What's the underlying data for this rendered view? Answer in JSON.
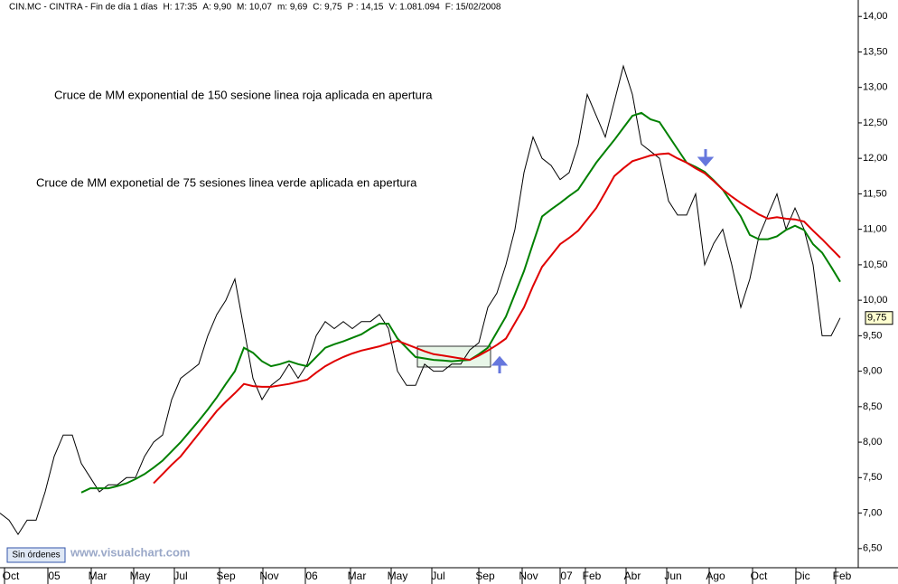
{
  "chart_data": {
    "type": "line",
    "header": [
      "CIN.MC - CINTRA - Fin de día 1 días",
      "H: 17:35",
      "A: 9,90",
      "M: 10,07",
      "m: 9,69",
      "C: 9,75",
      "P : 14,15",
      "V: 1.081.094",
      "F: 15/02/2008"
    ],
    "annotations": [
      {
        "text": "Cruce de MM exponential de 150 sesione linea roja aplicada en apertura",
        "color": "#e00000"
      },
      {
        "text": "Cruce de MM exponetial de 75 sesiones linea verde aplicada en apertura",
        "color": "#008000"
      }
    ],
    "button": "Sin órdenes",
    "watermark": "www.visualchart.com",
    "last_value": 9.75,
    "last_value_label": "9,75",
    "x": [
      0,
      10,
      20,
      30,
      40,
      50,
      60,
      70,
      80,
      90,
      100,
      110,
      120,
      130,
      140,
      150,
      160,
      170,
      180,
      190,
      200,
      210,
      220,
      230,
      240,
      250,
      260,
      270,
      280,
      290,
      300,
      310,
      320,
      330,
      340,
      350,
      360,
      370,
      380,
      390,
      400,
      410,
      420,
      430,
      440,
      450,
      460,
      470,
      480,
      490,
      500,
      510,
      520,
      530,
      540,
      550,
      560,
      570,
      580,
      590,
      600,
      610,
      620,
      630,
      640,
      650,
      660,
      670,
      680,
      690,
      700,
      710,
      720,
      730,
      740,
      750,
      760,
      770,
      780,
      790,
      800,
      810,
      820,
      830,
      840,
      850,
      860,
      870,
      880,
      890,
      900,
      910,
      920,
      930
    ],
    "series": [
      {
        "color": "#000000",
        "values": [
          7.0,
          6.9,
          6.7,
          6.9,
          6.9,
          7.3,
          7.8,
          8.1,
          8.1,
          7.7,
          7.5,
          7.3,
          7.4,
          7.4,
          7.5,
          7.5,
          7.8,
          8.0,
          8.1,
          8.6,
          8.9,
          9.0,
          9.1,
          9.5,
          9.8,
          10.0,
          10.3,
          9.6,
          8.9,
          8.6,
          8.8,
          8.9,
          9.1,
          8.9,
          9.1,
          9.5,
          9.7,
          9.6,
          9.7,
          9.6,
          9.7,
          9.7,
          9.8,
          9.6,
          9.0,
          8.8,
          8.8,
          9.1,
          9.0,
          9.0,
          9.1,
          9.1,
          9.3,
          9.4,
          9.9,
          10.1,
          10.5,
          11.0,
          11.8,
          12.3,
          12.0,
          11.9,
          11.7,
          11.8,
          12.2,
          12.9,
          12.6,
          12.3,
          12.8,
          13.3,
          12.9,
          12.2,
          12.1,
          12.0,
          11.4,
          11.2,
          11.2,
          11.5,
          10.5,
          10.8,
          11.0,
          10.5,
          9.9,
          10.3,
          10.9,
          11.2,
          11.5,
          11.0,
          11.3,
          11.0,
          10.5,
          9.5,
          9.5,
          9.75
        ]
      },
      {
        "color": "#008000",
        "values": [
          null,
          null,
          null,
          null,
          null,
          null,
          null,
          null,
          null,
          7.29,
          7.35,
          7.35,
          7.35,
          7.38,
          7.42,
          7.48,
          7.55,
          7.64,
          7.74,
          7.87,
          8.0,
          8.15,
          8.3,
          8.46,
          8.63,
          8.82,
          9.0,
          9.33,
          9.26,
          9.14,
          9.07,
          9.1,
          9.14,
          9.1,
          9.07,
          9.2,
          9.33,
          9.38,
          9.42,
          9.47,
          9.52,
          9.6,
          9.67,
          9.67,
          9.46,
          9.33,
          9.2,
          9.18,
          9.16,
          9.15,
          9.14,
          9.15,
          9.16,
          9.24,
          9.33,
          9.55,
          9.77,
          10.09,
          10.41,
          10.8,
          11.18,
          11.28,
          11.37,
          11.47,
          11.56,
          11.75,
          11.94,
          12.1,
          12.26,
          12.43,
          12.6,
          12.64,
          12.55,
          12.51,
          12.32,
          12.13,
          11.94,
          11.88,
          11.81,
          11.69,
          11.56,
          11.37,
          11.18,
          10.92,
          10.86,
          10.86,
          10.9,
          10.99,
          11.05,
          10.99,
          10.79,
          10.67,
          10.47,
          10.26
        ]
      },
      {
        "color": "#e00000",
        "values": [
          null,
          null,
          null,
          null,
          null,
          null,
          null,
          null,
          null,
          null,
          null,
          null,
          null,
          null,
          null,
          null,
          null,
          7.42,
          7.55,
          7.68,
          7.8,
          7.96,
          8.12,
          8.28,
          8.44,
          8.57,
          8.69,
          8.82,
          8.79,
          8.78,
          8.78,
          8.8,
          8.82,
          8.85,
          8.88,
          8.98,
          9.07,
          9.14,
          9.2,
          9.25,
          9.29,
          9.32,
          9.35,
          9.39,
          9.43,
          9.38,
          9.33,
          9.28,
          9.24,
          9.22,
          9.2,
          9.18,
          9.16,
          9.22,
          9.29,
          9.37,
          9.46,
          9.68,
          9.9,
          10.2,
          10.47,
          10.63,
          10.79,
          10.88,
          10.98,
          11.14,
          11.3,
          11.52,
          11.75,
          11.86,
          11.96,
          12.0,
          12.04,
          12.06,
          12.07,
          12.0,
          11.94,
          11.86,
          11.79,
          11.68,
          11.56,
          11.46,
          11.37,
          11.29,
          11.21,
          11.15,
          11.17,
          11.15,
          11.14,
          11.11,
          10.98,
          10.86,
          10.73,
          10.6
        ]
      }
    ],
    "xlim": [
      0,
      950
    ],
    "xticks": [
      {
        "value": 12,
        "label": "Oct"
      },
      {
        "value": 60,
        "label": "05"
      },
      {
        "value": 108,
        "label": "Mar"
      },
      {
        "value": 155,
        "label": "May"
      },
      {
        "value": 200,
        "label": "Jul"
      },
      {
        "value": 250,
        "label": "Sep"
      },
      {
        "value": 298,
        "label": "Nov"
      },
      {
        "value": 345,
        "label": "06"
      },
      {
        "value": 395,
        "label": "Mar"
      },
      {
        "value": 440,
        "label": "May"
      },
      {
        "value": 485,
        "label": "Jul"
      },
      {
        "value": 537,
        "label": "Sep"
      },
      {
        "value": 585,
        "label": "Nov"
      },
      {
        "value": 627,
        "label": "07"
      },
      {
        "value": 655,
        "label": "Feb"
      },
      {
        "value": 700,
        "label": "Abr"
      },
      {
        "value": 745,
        "label": "Jun"
      },
      {
        "value": 792,
        "label": "Ago"
      },
      {
        "value": 840,
        "label": "Oct"
      },
      {
        "value": 888,
        "label": "Dic"
      },
      {
        "value": 932,
        "label": "Feb"
      }
    ],
    "ylim": [
      6.23,
      14.13
    ],
    "yticks": [
      {
        "value": 6.5,
        "label": "6,50"
      },
      {
        "value": 7,
        "label": "7,00"
      },
      {
        "value": 7.5,
        "label": "7,50"
      },
      {
        "value": 8,
        "label": "8,00"
      },
      {
        "value": 8.5,
        "label": "8,50"
      },
      {
        "value": 9,
        "label": "9,00"
      },
      {
        "value": 9.5,
        "label": "9,50"
      },
      {
        "value": 10,
        "label": "10,00"
      },
      {
        "value": 10.5,
        "label": "10,50"
      },
      {
        "value": 11,
        "label": "11,00"
      },
      {
        "value": 11.5,
        "label": "11,50"
      },
      {
        "value": 12,
        "label": "12,00"
      },
      {
        "value": 12.5,
        "label": "12,50"
      },
      {
        "value": 13,
        "label": "13,00"
      },
      {
        "value": 13.5,
        "label": "13,50"
      },
      {
        "value": 14,
        "label": "14,00"
      }
    ]
  }
}
